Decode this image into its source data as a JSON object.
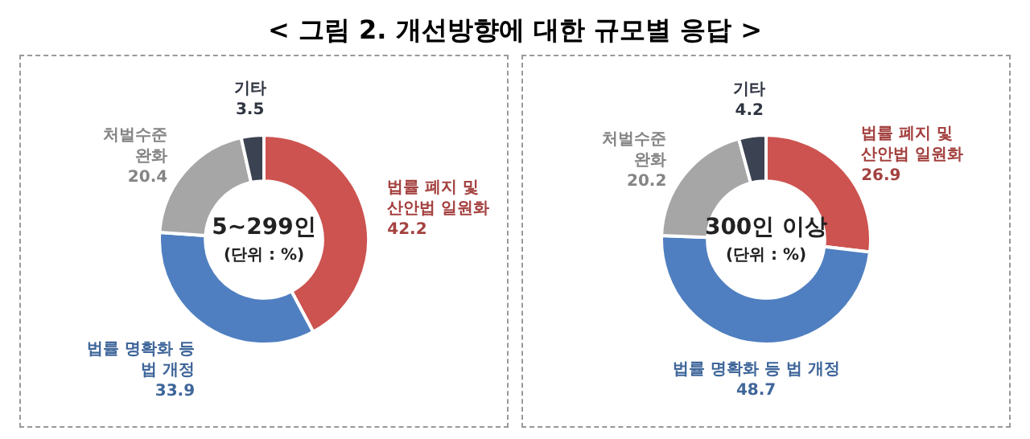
{
  "chart_data": [
    {
      "type": "donut",
      "title": "< 그림 2. 개선방향에 대한 규모별 응답 >",
      "subtitle": "5~299인",
      "annotations": [
        "(단위 : %)"
      ],
      "categories": [
        "법률 폐지 및\n산안법 일원화",
        "법률 명확화 등\n법 개정",
        "처벌수준\n완화",
        "기타"
      ],
      "values": [
        42.2,
        33.9,
        20.4,
        3.5
      ],
      "colors": [
        "#cd5350",
        "#4f7fc0",
        "#a6a6a6",
        "#3b4251"
      ],
      "data_labels": true
    },
    {
      "type": "donut",
      "subtitle": "300인 이상",
      "annotations": [
        "(단위 : %)"
      ],
      "categories": [
        "법률 폐지 및\n산안법 일원화",
        "법률 명확화 등 법 개정",
        "처벌수준\n완화",
        "기타"
      ],
      "values": [
        26.9,
        48.7,
        20.2,
        4.2
      ],
      "colors": [
        "#cd5350",
        "#4f7fc0",
        "#a6a6a6",
        "#3b4251"
      ],
      "data_labels": true
    }
  ]
}
